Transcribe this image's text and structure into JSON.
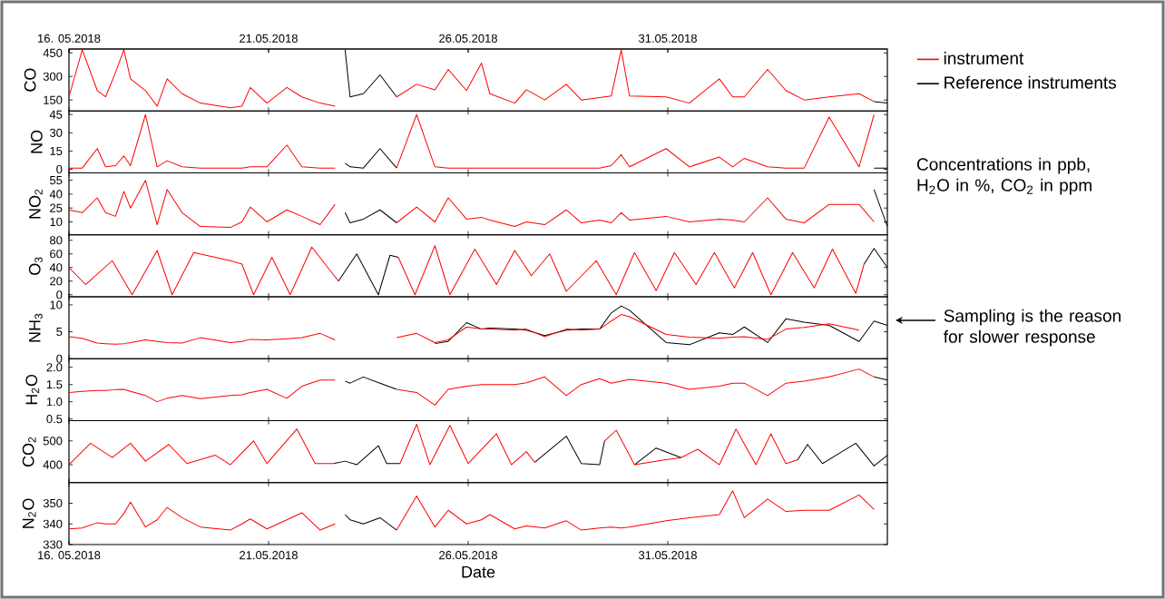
{
  "chart_data": [
    {
      "type": "line",
      "ylabel": "CO",
      "legend": "right",
      "annotations": [
        "Concentrations in ppb, H$_{2}$O in %, CO$_{2}$ in ppm"
      ],
      "xlim": [
        "2018-05-16T00:00",
        "2018-06-05T12:00"
      ],
      "x2lim": [
        "2018-05-16T00:00",
        "2018-06-05T12:00"
      ],
      "ylim": [
        80,
        475
      ],
      "yticks": [
        150,
        300,
        450
      ],
      "tick_labels": "y",
      "xticks": [
        {
          "value": "2018-05-16",
          "label": null
        },
        {
          "value": "2018-05-21",
          "label": null
        },
        {
          "value": "2018-05-26",
          "label": null
        },
        {
          "value": "2018-05-31",
          "label": null
        }
      ],
      "x2ticks": [
        {
          "value": "2018-05-16",
          "label": "16. 05.2018"
        },
        {
          "value": "2018-05-21",
          "label": "21.05.2018"
        },
        {
          "value": "2018-05-26",
          "label": "26.05.2018"
        },
        {
          "value": "2018-05-31",
          "label": "31.05.2018"
        }
      ],
      "x": [
        "2018-05-16T00:00",
        "2018-05-16T08:00",
        "2018-05-16T17:00",
        "2018-05-16T22:00",
        "2018-05-17T04:00",
        "2018-05-17T09:00",
        "2018-05-17T13:00",
        "2018-05-17T22:00",
        "2018-05-18T05:00",
        "2018-05-18T11:00",
        "2018-05-18T20:00",
        "2018-05-19T07:00",
        "2018-05-20T01:00",
        "2018-05-20T08:00",
        "2018-05-20T13:00",
        "2018-05-20T23:00",
        "2018-05-21T11:00",
        "2018-05-21T20:00",
        "2018-05-22T07:00",
        "2018-05-22T16:00",
        "2018-05-22T22:00",
        "2018-05-23T01:00",
        "2018-05-23T09:00",
        "2018-05-23T19:00",
        "2018-05-24T05:00",
        "2018-05-24T17:00",
        "2018-05-25T04:00",
        "2018-05-25T12:00",
        "2018-05-25T23:00",
        "2018-05-26T08:00",
        "2018-05-26T13:00",
        "2018-05-27T04:00",
        "2018-05-27T11:00",
        "2018-05-27T22:00",
        "2018-05-28T11:00",
        "2018-05-28T20:00",
        "2018-05-29T07:00",
        "2018-05-29T14:00",
        "2018-05-29T20:00",
        "2018-05-30T01:00",
        "2018-05-30T23:00",
        "2018-05-31T13:00",
        "2018-06-01T07:00",
        "2018-06-01T15:00",
        "2018-06-01T22:00",
        "2018-06-02T12:00",
        "2018-06-02T23:00",
        "2018-06-03T10:00",
        "2018-06-04T01:00",
        "2018-06-04T19:00",
        "2018-06-05T04:00",
        "2018-06-05T12:00"
      ],
      "series": [
        {
          "name": "instrument",
          "color": "#ff0000",
          "values": [
            170,
            470,
            210,
            170,
            325,
            470,
            285,
            210,
            110,
            285,
            190,
            130,
            100,
            110,
            230,
            130,
            230,
            170,
            130,
            110,
            null,
            null,
            null,
            null,
            170,
            250,
            215,
            345,
            210,
            385,
            190,
            130,
            215,
            150,
            250,
            150,
            165,
            175,
            470,
            175,
            170,
            130,
            285,
            170,
            170,
            345,
            210,
            150,
            170,
            190,
            140,
            null
          ]
        },
        {
          "name": "Reference instruments",
          "color": "#000000",
          "values": [
            null,
            null,
            null,
            null,
            null,
            null,
            null,
            null,
            null,
            null,
            null,
            null,
            null,
            null,
            null,
            null,
            null,
            null,
            null,
            null,
            470,
            170,
            190,
            310,
            170,
            null,
            null,
            null,
            null,
            null,
            null,
            null,
            null,
            null,
            null,
            null,
            null,
            null,
            null,
            null,
            null,
            null,
            null,
            null,
            null,
            null,
            null,
            null,
            null,
            null,
            140,
            130
          ]
        }
      ]
    },
    {
      "type": "line",
      "ylabel": "NO",
      "xlim": [
        "2018-05-16T00:00",
        "2018-06-05T12:00"
      ],
      "ylim": [
        -3,
        48
      ],
      "yticks": [
        0,
        15,
        30,
        45
      ],
      "tick_labels": "y",
      "xticks": [
        {
          "value": "2018-05-16",
          "label": null
        },
        {
          "value": "2018-05-21",
          "label": null
        },
        {
          "value": "2018-05-26",
          "label": null
        },
        {
          "value": "2018-05-31",
          "label": null
        }
      ],
      "x": [
        "2018-05-16T00:00",
        "2018-05-16T08:00",
        "2018-05-16T17:00",
        "2018-05-16T22:00",
        "2018-05-17T04:00",
        "2018-05-17T09:00",
        "2018-05-17T13:00",
        "2018-05-17T22:00",
        "2018-05-18T05:00",
        "2018-05-18T11:00",
        "2018-05-18T20:00",
        "2018-05-19T07:00",
        "2018-05-20T01:00",
        "2018-05-20T08:00",
        "2018-05-20T13:00",
        "2018-05-20T23:00",
        "2018-05-21T11:00",
        "2018-05-21T20:00",
        "2018-05-22T07:00",
        "2018-05-22T16:00",
        "2018-05-22T22:00",
        "2018-05-23T01:00",
        "2018-05-23T09:00",
        "2018-05-23T19:00",
        "2018-05-24T05:00",
        "2018-05-24T17:00",
        "2018-05-25T04:00",
        "2018-05-25T12:00",
        "2018-05-25T23:00",
        "2018-05-26T08:00",
        "2018-05-26T13:00",
        "2018-05-27T04:00",
        "2018-05-27T11:00",
        "2018-05-27T22:00",
        "2018-05-28T11:00",
        "2018-05-28T20:00",
        "2018-05-29T07:00",
        "2018-05-29T14:00",
        "2018-05-29T20:00",
        "2018-05-30T01:00",
        "2018-05-30T23:00",
        "2018-05-31T13:00",
        "2018-06-01T07:00",
        "2018-06-01T15:00",
        "2018-06-01T22:00",
        "2018-06-02T12:00",
        "2018-06-02T23:00",
        "2018-06-03T10:00",
        "2018-06-04T01:00",
        "2018-06-04T19:00",
        "2018-06-05T04:00",
        "2018-06-05T12:00"
      ],
      "series": [
        {
          "color": "#ff0000",
          "values": [
            1,
            1,
            17,
            2,
            3,
            11,
            3,
            45,
            2,
            7,
            2,
            1,
            1,
            1,
            2,
            2,
            20,
            2,
            1,
            1,
            null,
            null,
            null,
            null,
            1,
            45,
            2,
            1,
            1,
            1,
            1,
            1,
            1,
            1,
            1,
            1,
            1,
            3,
            12,
            2,
            17,
            2,
            10,
            2,
            9,
            2,
            1,
            1,
            43,
            2,
            45,
            null
          ]
        },
        {
          "color": "#000000",
          "values": [
            null,
            null,
            null,
            null,
            null,
            null,
            null,
            null,
            null,
            null,
            null,
            null,
            null,
            null,
            null,
            null,
            null,
            null,
            null,
            null,
            5,
            2,
            1,
            17,
            1,
            null,
            null,
            null,
            null,
            null,
            null,
            null,
            null,
            null,
            null,
            null,
            null,
            null,
            null,
            null,
            null,
            null,
            null,
            null,
            null,
            null,
            null,
            null,
            null,
            null,
            1,
            1
          ]
        }
      ]
    },
    {
      "type": "line",
      "ylabel": "NO$_{2}$",
      "xlim": [
        "2018-05-16T00:00",
        "2018-06-05T12:00"
      ],
      "ylim": [
        -4,
        63
      ],
      "yticks": [
        10,
        25,
        40,
        55
      ],
      "tick_labels": "y",
      "xticks": [
        {
          "value": "2018-05-16",
          "label": null
        },
        {
          "value": "2018-05-21",
          "label": null
        },
        {
          "value": "2018-05-26",
          "label": null
        },
        {
          "value": "2018-05-31",
          "label": null
        }
      ],
      "x": [
        "2018-05-16T00:00",
        "2018-05-16T08:00",
        "2018-05-16T17:00",
        "2018-05-16T22:00",
        "2018-05-17T04:00",
        "2018-05-17T09:00",
        "2018-05-17T13:00",
        "2018-05-17T22:00",
        "2018-05-18T05:00",
        "2018-05-18T11:00",
        "2018-05-18T20:00",
        "2018-05-19T07:00",
        "2018-05-20T01:00",
        "2018-05-20T08:00",
        "2018-05-20T13:00",
        "2018-05-20T23:00",
        "2018-05-21T11:00",
        "2018-05-21T20:00",
        "2018-05-22T07:00",
        "2018-05-22T16:00",
        "2018-05-22T22:00",
        "2018-05-23T01:00",
        "2018-05-23T09:00",
        "2018-05-23T19:00",
        "2018-05-24T05:00",
        "2018-05-24T17:00",
        "2018-05-25T04:00",
        "2018-05-25T12:00",
        "2018-05-25T23:00",
        "2018-05-26T08:00",
        "2018-05-26T13:00",
        "2018-05-27T04:00",
        "2018-05-27T11:00",
        "2018-05-27T22:00",
        "2018-05-28T11:00",
        "2018-05-28T20:00",
        "2018-05-29T07:00",
        "2018-05-29T14:00",
        "2018-05-29T20:00",
        "2018-05-30T01:00",
        "2018-05-30T23:00",
        "2018-05-31T13:00",
        "2018-06-01T07:00",
        "2018-06-01T15:00",
        "2018-06-01T22:00",
        "2018-06-02T12:00",
        "2018-06-02T23:00",
        "2018-06-03T10:00",
        "2018-06-04T01:00",
        "2018-06-04T19:00",
        "2018-06-05T04:00",
        "2018-06-05T12:00"
      ],
      "series": [
        {
          "color": "#ff0000",
          "values": [
            23,
            20,
            36,
            20,
            16,
            43,
            25,
            55,
            7,
            45,
            20,
            5,
            4,
            10,
            26,
            10,
            23,
            16,
            7,
            29,
            null,
            null,
            null,
            null,
            9,
            26,
            10,
            36,
            13,
            15,
            12,
            5,
            10,
            7,
            23,
            9,
            12,
            9,
            20,
            12,
            16,
            10,
            13,
            12,
            10,
            36,
            13,
            9,
            29,
            29,
            10,
            null
          ]
        },
        {
          "color": "#000000",
          "values": [
            null,
            null,
            null,
            null,
            null,
            null,
            null,
            null,
            null,
            null,
            null,
            null,
            null,
            null,
            null,
            null,
            null,
            null,
            null,
            null,
            20,
            9,
            13,
            23,
            9,
            null,
            null,
            null,
            null,
            null,
            null,
            null,
            null,
            null,
            null,
            null,
            null,
            null,
            null,
            null,
            null,
            null,
            null,
            null,
            null,
            null,
            null,
            null,
            null,
            null,
            45,
            5
          ]
        }
      ]
    },
    {
      "type": "line",
      "ylabel": "O$_{3}$",
      "xlim": [
        "2018-05-16T00:00",
        "2018-06-05T12:00"
      ],
      "ylim": [
        -3,
        88
      ],
      "yticks": [
        0,
        20,
        40,
        60,
        80
      ],
      "tick_labels": "y",
      "xticks": [
        {
          "value": "2018-05-16",
          "label": null
        },
        {
          "value": "2018-05-21",
          "label": null
        },
        {
          "value": "2018-05-26",
          "label": null
        },
        {
          "value": "2018-05-31",
          "label": null
        }
      ],
      "series": [
        {
          "color": "#ff0000",
          "x": [
            "2018-05-16T00:00",
            "2018-05-16T10:00",
            "2018-05-17T02:00",
            "2018-05-17T14:00",
            "2018-05-18T05:00",
            "2018-05-18T14:00",
            "2018-05-19T03:00",
            "2018-05-20T01:00",
            "2018-05-20T08:00",
            "2018-05-20T15:00",
            "2018-05-21T02:00",
            "2018-05-21T13:00",
            "2018-05-22T02:00",
            "2018-05-22T18:00",
            "2018-05-23T00:00",
            "2018-05-24T06:00",
            "2018-05-24T16:00",
            "2018-05-25T04:00",
            "2018-05-25T13:00",
            "2018-05-26T04:00",
            "2018-05-26T17:00",
            "2018-05-27T04:00",
            "2018-05-27T14:00",
            "2018-05-28T01:00",
            "2018-05-28T11:00",
            "2018-05-29T05:00",
            "2018-05-29T17:00",
            "2018-05-30T04:00",
            "2018-05-30T17:00",
            "2018-05-31T04:00",
            "2018-05-31T17:00",
            "2018-06-01T04:00",
            "2018-06-01T16:00",
            "2018-06-02T03:00",
            "2018-06-02T14:00",
            "2018-06-03T03:00",
            "2018-06-03T16:00",
            "2018-06-04T03:00",
            "2018-06-04T17:00",
            "2018-06-04T22:00"
          ],
          "values": [
            40,
            15,
            50,
            0,
            65,
            0,
            62,
            50,
            45,
            0,
            55,
            0,
            70,
            20,
            null,
            55,
            0,
            72,
            0,
            67,
            15,
            65,
            28,
            60,
            5,
            50,
            0,
            62,
            6,
            62,
            15,
            62,
            10,
            62,
            0,
            62,
            10,
            67,
            2,
            45
          ]
        },
        {
          "color": "#000000",
          "x": [
            "2018-05-22T18:00",
            "2018-05-23T05:00",
            "2018-05-23T18:00",
            "2018-05-24T01:00",
            "2018-05-24T06:00",
            "2018-05-24T12:00",
            "2018-06-04T22:00",
            "2018-06-05T04:00",
            "2018-06-05T12:00"
          ],
          "values": [
            20,
            60,
            0,
            58,
            55,
            null,
            45,
            68,
            40
          ]
        }
      ]
    },
    {
      "type": "line",
      "ylabel": "NH$_{3}$",
      "annotations": [
        "Sampling is the reason for slower response"
      ],
      "xlim": [
        "2018-05-16T00:00",
        "2018-06-05T12:00"
      ],
      "ylim": [
        0,
        11.5
      ],
      "yticks": [
        0,
        5,
        10
      ],
      "tick_labels": "y",
      "xticks": [
        {
          "value": "2018-05-16",
          "label": null
        },
        {
          "value": "2018-05-21",
          "label": null
        },
        {
          "value": "2018-05-26",
          "label": null
        },
        {
          "value": "2018-05-31",
          "label": null
        }
      ],
      "x": [
        "2018-05-16T00:00",
        "2018-05-16T08:00",
        "2018-05-16T17:00",
        "2018-05-16T22:00",
        "2018-05-17T04:00",
        "2018-05-17T09:00",
        "2018-05-17T13:00",
        "2018-05-17T22:00",
        "2018-05-18T05:00",
        "2018-05-18T11:00",
        "2018-05-18T20:00",
        "2018-05-19T07:00",
        "2018-05-20T01:00",
        "2018-05-20T08:00",
        "2018-05-20T13:00",
        "2018-05-20T23:00",
        "2018-05-21T11:00",
        "2018-05-21T20:00",
        "2018-05-22T07:00",
        "2018-05-22T16:00",
        "2018-05-22T22:00",
        "2018-05-23T01:00",
        "2018-05-23T09:00",
        "2018-05-23T19:00",
        "2018-05-24T05:00",
        "2018-05-24T17:00",
        "2018-05-25T04:00",
        "2018-05-25T12:00",
        "2018-05-25T23:00",
        "2018-05-26T08:00",
        "2018-05-26T13:00",
        "2018-05-27T04:00",
        "2018-05-27T11:00",
        "2018-05-27T22:00",
        "2018-05-28T11:00",
        "2018-05-28T20:00",
        "2018-05-29T07:00",
        "2018-05-29T14:00",
        "2018-05-29T20:00",
        "2018-05-30T01:00",
        "2018-05-30T23:00",
        "2018-05-31T13:00",
        "2018-06-01T07:00",
        "2018-06-01T15:00",
        "2018-06-01T22:00",
        "2018-06-02T12:00",
        "2018-06-02T23:00",
        "2018-06-03T10:00",
        "2018-06-04T01:00",
        "2018-06-04T19:00",
        "2018-06-05T04:00",
        "2018-06-05T12:00"
      ],
      "series": [
        {
          "color": "#ff0000",
          "values": [
            4.1,
            3.8,
            2.9,
            2.8,
            2.7,
            2.8,
            3.0,
            3.5,
            3.2,
            3.0,
            2.9,
            3.9,
            3.0,
            3.2,
            3.6,
            3.5,
            3.7,
            3.9,
            4.7,
            3.5,
            null,
            null,
            null,
            null,
            3.9,
            4.7,
            3.0,
            3.5,
            5.9,
            5.5,
            5.5,
            5.3,
            5.5,
            4.1,
            5.5,
            5.3,
            5.5,
            7.0,
            8.2,
            7.8,
            4.5,
            4.0,
            3.8,
            4.0,
            4.1,
            3.6,
            5.5,
            5.8,
            6.5,
            5.3,
            null,
            null
          ]
        },
        {
          "color": "#000000",
          "values": [
            null,
            null,
            null,
            null,
            null,
            null,
            null,
            null,
            null,
            null,
            null,
            null,
            null,
            null,
            null,
            null,
            null,
            null,
            null,
            null,
            null,
            null,
            null,
            null,
            null,
            null,
            2.8,
            3.2,
            6.7,
            5.5,
            5.7,
            5.5,
            5.3,
            4.3,
            5.3,
            5.5,
            5.5,
            8.5,
            9.8,
            9.0,
            3.0,
            2.6,
            4.8,
            4.5,
            5.9,
            3.0,
            7.4,
            6.8,
            6.2,
            3.2,
            7.0,
            6.2
          ]
        }
      ]
    },
    {
      "type": "line",
      "ylabel": "H$_{2}$O",
      "xlim": [
        "2018-05-16T00:00",
        "2018-06-05T12:00"
      ],
      "ylim": [
        0.45,
        2.25
      ],
      "yticks": [
        {
          "value": 0.5,
          "label": "0.5"
        },
        {
          "value": 1,
          "label": "1.0"
        },
        {
          "value": 1.5,
          "label": "1.5"
        },
        {
          "value": 2,
          "label": "2.0"
        }
      ],
      "tick_labels": "y",
      "xticks": [
        {
          "value": "2018-05-16",
          "label": null
        },
        {
          "value": "2018-05-21",
          "label": null
        },
        {
          "value": "2018-05-26",
          "label": null
        },
        {
          "value": "2018-05-31",
          "label": null
        }
      ],
      "x": [
        "2018-05-16T00:00",
        "2018-05-16T08:00",
        "2018-05-16T17:00",
        "2018-05-16T22:00",
        "2018-05-17T04:00",
        "2018-05-17T09:00",
        "2018-05-17T13:00",
        "2018-05-17T22:00",
        "2018-05-18T05:00",
        "2018-05-18T11:00",
        "2018-05-18T20:00",
        "2018-05-19T07:00",
        "2018-05-20T01:00",
        "2018-05-20T08:00",
        "2018-05-20T13:00",
        "2018-05-20T23:00",
        "2018-05-21T11:00",
        "2018-05-21T20:00",
        "2018-05-22T07:00",
        "2018-05-22T16:00",
        "2018-05-22T22:00",
        "2018-05-23T01:00",
        "2018-05-23T09:00",
        "2018-05-23T19:00",
        "2018-05-24T05:00",
        "2018-05-24T17:00",
        "2018-05-25T04:00",
        "2018-05-25T12:00",
        "2018-05-25T23:00",
        "2018-05-26T08:00",
        "2018-05-26T13:00",
        "2018-05-27T04:00",
        "2018-05-27T11:00",
        "2018-05-27T22:00",
        "2018-05-28T11:00",
        "2018-05-28T20:00",
        "2018-05-29T07:00",
        "2018-05-29T14:00",
        "2018-05-29T20:00",
        "2018-05-30T01:00",
        "2018-05-30T23:00",
        "2018-05-31T13:00",
        "2018-06-01T07:00",
        "2018-06-01T15:00",
        "2018-06-01T22:00",
        "2018-06-02T12:00",
        "2018-06-02T23:00",
        "2018-06-03T10:00",
        "2018-06-04T01:00",
        "2018-06-04T19:00",
        "2018-06-05T04:00",
        "2018-06-05T12:00"
      ],
      "series": [
        {
          "color": "#ff0000",
          "values": [
            1.27,
            1.3,
            1.33,
            1.33,
            1.35,
            1.36,
            1.3,
            1.18,
            1.0,
            1.1,
            1.18,
            1.09,
            1.18,
            1.2,
            1.27,
            1.36,
            1.1,
            1.45,
            1.63,
            1.63,
            null,
            null,
            null,
            null,
            1.36,
            1.27,
            0.9,
            1.36,
            1.45,
            1.5,
            1.5,
            1.5,
            1.55,
            1.72,
            1.18,
            1.5,
            1.67,
            1.54,
            1.6,
            1.65,
            1.54,
            1.36,
            1.45,
            1.54,
            1.54,
            1.18,
            1.54,
            1.6,
            1.72,
            1.95,
            1.72,
            null
          ]
        },
        {
          "color": "#000000",
          "values": [
            null,
            null,
            null,
            null,
            null,
            null,
            null,
            null,
            null,
            null,
            null,
            null,
            null,
            null,
            null,
            null,
            null,
            null,
            null,
            null,
            1.6,
            1.54,
            1.72,
            1.54,
            1.36,
            null,
            null,
            null,
            null,
            null,
            null,
            null,
            null,
            null,
            null,
            null,
            null,
            null,
            null,
            null,
            null,
            null,
            null,
            null,
            null,
            null,
            null,
            null,
            null,
            null,
            1.72,
            1.63
          ]
        }
      ]
    },
    {
      "type": "line",
      "ylabel": "CO$_{2}$",
      "xlim": [
        "2018-05-16T00:00",
        "2018-06-05T12:00"
      ],
      "ylim": [
        325,
        585
      ],
      "yticks": [
        400,
        500
      ],
      "tick_labels": "y",
      "xticks": [
        {
          "value": "2018-05-16",
          "label": null
        },
        {
          "value": "2018-05-21",
          "label": null
        },
        {
          "value": "2018-05-26",
          "label": null
        },
        {
          "value": "2018-05-31",
          "label": null
        }
      ],
      "series": [
        {
          "color": "#ff0000",
          "x": [
            "2018-05-16T00:00",
            "2018-05-16T13:00",
            "2018-05-17T02:00",
            "2018-05-17T13:00",
            "2018-05-17T22:00",
            "2018-05-18T12:00",
            "2018-05-18T23:00",
            "2018-05-19T16:00",
            "2018-05-20T01:00",
            "2018-05-20T15:00",
            "2018-05-20T23:00",
            "2018-05-21T17:00",
            "2018-05-22T04:00",
            "2018-05-22T15:00",
            "2018-05-23T02:00",
            "2018-05-24T07:00",
            "2018-05-24T17:00",
            "2018-05-25T01:00",
            "2018-05-25T13:00",
            "2018-05-26T00:00",
            "2018-05-26T17:00",
            "2018-05-27T02:00",
            "2018-05-27T11:00",
            "2018-05-27T16:00",
            "2018-05-28T00:00",
            "2018-05-29T10:00",
            "2018-05-29T17:00",
            "2018-05-30T04:00",
            "2018-05-30T22:00",
            "2018-05-31T08:00",
            "2018-05-31T18:00",
            "2018-06-01T07:00",
            "2018-06-01T17:00",
            "2018-06-02T05:00",
            "2018-06-02T14:00",
            "2018-06-02T23:00",
            "2018-06-03T06:00"
          ],
          "values": [
            400,
            490,
            430,
            490,
            415,
            485,
            405,
            440,
            400,
            500,
            405,
            550,
            405,
            405,
            null,
            405,
            570,
            400,
            565,
            405,
            530,
            400,
            455,
            410,
            null,
            500,
            545,
            400,
            420,
            430,
            465,
            400,
            550,
            400,
            530,
            405,
            420
          ]
        },
        {
          "color": "#000000",
          "x": [
            "2018-05-22T15:00",
            "2018-05-22T22:00",
            "2018-05-23T05:00",
            "2018-05-23T18:00",
            "2018-05-23T23:00",
            "2018-05-24T07:00",
            "2018-05-25T12:00",
            "2018-05-27T16:00",
            "2018-05-28T11:00",
            "2018-05-28T20:00",
            "2018-05-29T07:00",
            "2018-05-29T10:00",
            "2018-05-29T14:00",
            "2018-05-30T04:00",
            "2018-05-30T17:00",
            "2018-05-31T08:00",
            "2018-05-31T12:00",
            "2018-06-03T06:00",
            "2018-06-03T12:00",
            "2018-06-03T21:00",
            "2018-06-04T17:00",
            "2018-06-05T04:00",
            "2018-06-05T12:00"
          ],
          "values": [
            405,
            415,
            400,
            480,
            405,
            405,
            null,
            410,
            520,
            405,
            400,
            500,
            null,
            400,
            470,
            430,
            null,
            420,
            485,
            405,
            490,
            395,
            440
          ]
        }
      ]
    },
    {
      "type": "line",
      "ylabel": "N$_{2}$O",
      "xlabel": "Date",
      "xlim": [
        "2018-05-16T00:00",
        "2018-06-05T12:00"
      ],
      "ylim": [
        330,
        360
      ],
      "yticks": [
        330,
        340,
        350
      ],
      "xticks": [
        {
          "value": "2018-05-16",
          "label": "16. 05.2018"
        },
        {
          "value": "2018-05-21",
          "label": "21.05.2018"
        },
        {
          "value": "2018-05-26",
          "label": "26.05.2018"
        },
        {
          "value": "2018-05-31",
          "label": "31.05.2018"
        }
      ],
      "x": [
        "2018-05-16T00:00",
        "2018-05-16T08:00",
        "2018-05-16T17:00",
        "2018-05-16T22:00",
        "2018-05-17T04:00",
        "2018-05-17T09:00",
        "2018-05-17T13:00",
        "2018-05-17T22:00",
        "2018-05-18T05:00",
        "2018-05-18T11:00",
        "2018-05-18T20:00",
        "2018-05-19T07:00",
        "2018-05-20T01:00",
        "2018-05-20T08:00",
        "2018-05-20T13:00",
        "2018-05-20T23:00",
        "2018-05-21T11:00",
        "2018-05-21T20:00",
        "2018-05-22T07:00",
        "2018-05-22T16:00",
        "2018-05-22T22:00",
        "2018-05-23T01:00",
        "2018-05-23T09:00",
        "2018-05-23T19:00",
        "2018-05-24T05:00",
        "2018-05-24T17:00",
        "2018-05-25T04:00",
        "2018-05-25T12:00",
        "2018-05-25T23:00",
        "2018-05-26T08:00",
        "2018-05-26T13:00",
        "2018-05-27T04:00",
        "2018-05-27T11:00",
        "2018-05-27T22:00",
        "2018-05-28T11:00",
        "2018-05-28T20:00",
        "2018-05-29T07:00",
        "2018-05-29T14:00",
        "2018-05-29T20:00",
        "2018-05-30T01:00",
        "2018-05-30T23:00",
        "2018-05-31T13:00",
        "2018-06-01T07:00",
        "2018-06-01T15:00",
        "2018-06-01T22:00",
        "2018-06-02T12:00",
        "2018-06-02T23:00",
        "2018-06-03T10:00",
        "2018-06-04T01:00",
        "2018-06-04T19:00",
        "2018-06-05T04:00"
      ],
      "series": [
        {
          "color": "#ff0000",
          "values": [
            337.6,
            338,
            340.6,
            340,
            340,
            345,
            350.5,
            338.5,
            342,
            348,
            343,
            338.5,
            337,
            340,
            342.4,
            337.6,
            342,
            345.4,
            337,
            340,
            null,
            null,
            null,
            null,
            337,
            353.5,
            338.5,
            346.6,
            340,
            342,
            344.5,
            337.6,
            339,
            338,
            341.5,
            337,
            338,
            338.5,
            338,
            338.5,
            341.5,
            343,
            344.5,
            356,
            343,
            352,
            346,
            346.6,
            346.6,
            354,
            347
          ]
        },
        {
          "color": "#000000",
          "values": [
            null,
            null,
            null,
            null,
            null,
            null,
            null,
            null,
            null,
            null,
            null,
            null,
            null,
            null,
            null,
            null,
            null,
            null,
            null,
            null,
            344.5,
            342,
            340,
            343,
            337,
            null,
            null,
            null,
            null,
            null,
            null,
            null,
            null,
            null,
            null,
            null,
            null,
            null,
            null,
            null,
            null,
            null,
            null,
            null,
            null,
            null,
            null,
            null,
            null,
            null,
            null
          ]
        }
      ]
    }
  ]
}
